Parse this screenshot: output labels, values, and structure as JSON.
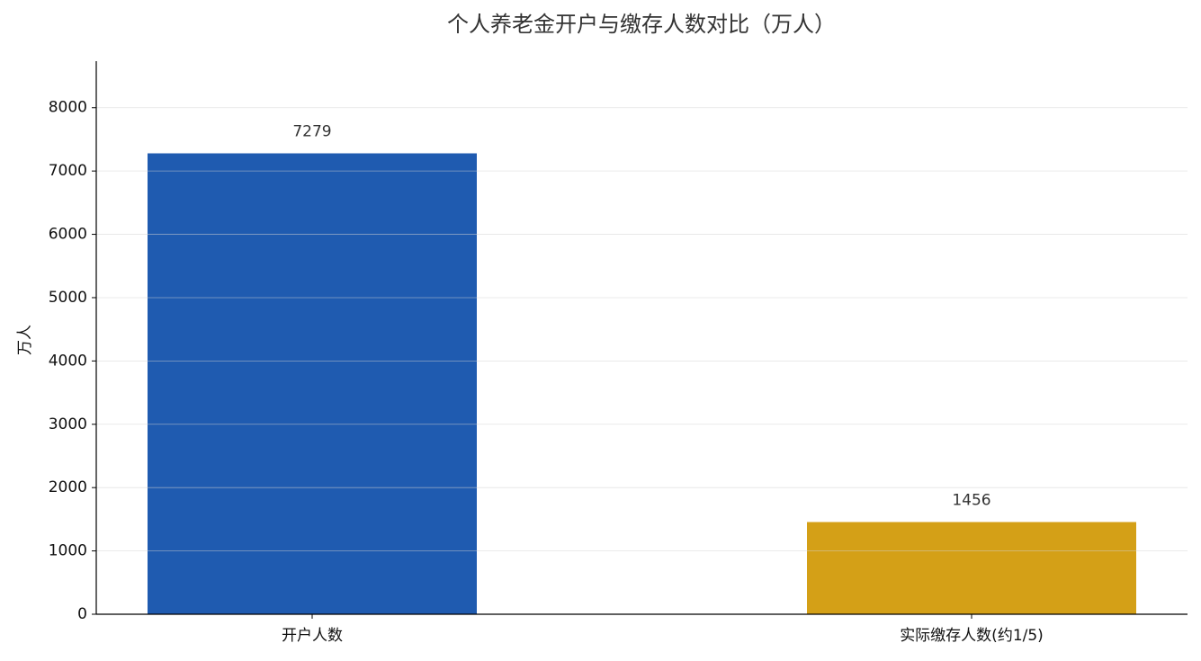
{
  "chart_data": {
    "type": "bar",
    "title": "个人养老金开户与缴存人数对比（万人）",
    "ylabel": "万人",
    "categories": [
      "开户人数",
      "实际缴存人数(约1/5)"
    ],
    "values": [
      7279,
      1456
    ],
    "colors": [
      "#1f5bb0",
      "#d4a017"
    ],
    "ylim": [
      0,
      8735
    ],
    "yticks": [
      0,
      1000,
      2000,
      3000,
      4000,
      5000,
      6000,
      7000,
      8000
    ],
    "grid": true
  }
}
